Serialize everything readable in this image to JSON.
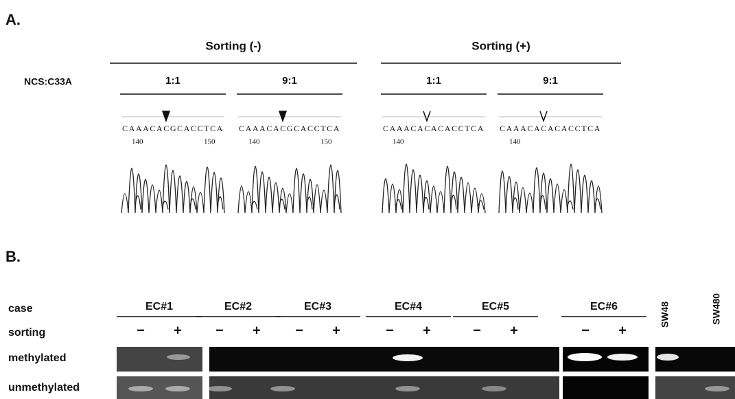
{
  "panel_a": {
    "label": "A.",
    "row_label": "NCS:C33A",
    "groups": [
      {
        "title": "Sorting (-)"
      },
      {
        "title": "Sorting (+)"
      }
    ],
    "samples": [
      {
        "ratio": "1:1",
        "sequence": "CAAACACGCACCTCA",
        "positions": [
          140,
          150
        ]
      },
      {
        "ratio": "9:1",
        "sequence": "CAAACACGCACCTCA",
        "positions": [
          140,
          150
        ]
      },
      {
        "ratio": "1:1",
        "sequence": "CAAACACACACCTCA",
        "positions": [
          140
        ]
      },
      {
        "ratio": "9:1",
        "sequence": "CAAACACACACCTCA",
        "positions": [
          140
        ]
      }
    ]
  },
  "panel_b": {
    "label": "B.",
    "row_labels": [
      "case",
      "sorting",
      "methylated",
      "unmethylated"
    ],
    "cases": [
      {
        "name": "EC#1",
        "sorting": [
          "−",
          "+"
        ]
      },
      {
        "name": "EC#2",
        "sorting": [
          "−",
          "+"
        ]
      },
      {
        "name": "EC#3",
        "sorting": [
          "−",
          "+"
        ]
      },
      {
        "name": "EC#4",
        "sorting": [
          "−",
          "+"
        ]
      },
      {
        "name": "EC#5",
        "sorting": [
          "−",
          "+"
        ]
      },
      {
        "name": "EC#6",
        "sorting": [
          "−",
          "+"
        ]
      }
    ],
    "controls": [
      "SW48",
      "SW480"
    ]
  }
}
